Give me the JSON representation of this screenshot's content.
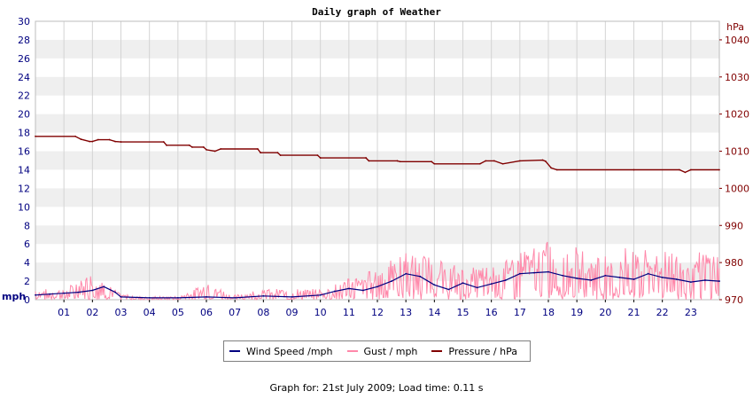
{
  "chart_data": {
    "type": "line",
    "title": "Daily graph of Weather",
    "x_ticks": [
      "01",
      "02",
      "03",
      "04",
      "05",
      "06",
      "07",
      "08",
      "09",
      "10",
      "11",
      "12",
      "13",
      "14",
      "15",
      "16",
      "17",
      "18",
      "19",
      "20",
      "21",
      "22",
      "23"
    ],
    "xlim": [
      0,
      24
    ],
    "y_left": {
      "unit": "mph",
      "ylim": [
        0,
        30
      ],
      "ticks": [
        0,
        2,
        4,
        6,
        8,
        10,
        12,
        14,
        16,
        18,
        20,
        22,
        24,
        26,
        28,
        30
      ]
    },
    "y_right": {
      "unit": "hPa",
      "ylim": [
        970,
        1045
      ],
      "ticks": [
        970,
        980,
        990,
        1000,
        1010,
        1020,
        1030,
        1040
      ]
    },
    "grid": "horizontal bands, vertical lines at hours",
    "series": [
      {
        "name": "Wind Speed /mph",
        "color": "#000080",
        "axis": "left",
        "x": [
          0,
          0.5,
          1,
          1.5,
          2,
          2.4,
          2.8,
          3,
          4,
          5,
          6,
          7,
          8,
          9,
          10,
          10.5,
          11,
          11.5,
          12,
          12.5,
          13,
          13.5,
          14,
          14.5,
          15,
          15.5,
          16,
          16.5,
          17,
          17.5,
          18,
          18.5,
          19,
          19.5,
          20,
          20.5,
          21,
          21.5,
          22,
          22.5,
          23,
          23.5,
          24
        ],
        "values": [
          0.5,
          0.6,
          0.7,
          0.8,
          1.0,
          1.4,
          0.8,
          0.3,
          0.2,
          0.2,
          0.3,
          0.2,
          0.4,
          0.3,
          0.5,
          0.9,
          1.2,
          1.0,
          1.4,
          2.0,
          2.8,
          2.5,
          1.6,
          1.1,
          1.8,
          1.3,
          1.7,
          2.1,
          2.8,
          2.9,
          3.0,
          2.6,
          2.3,
          2.1,
          2.6,
          2.4,
          2.2,
          2.8,
          2.4,
          2.2,
          1.9,
          2.1,
          2.0
        ]
      },
      {
        "name": "Gust / mph",
        "color": "#ff88aa",
        "axis": "left",
        "x": [
          0,
          1,
          2,
          3,
          4,
          5,
          6,
          7,
          8,
          9,
          10,
          11,
          12,
          13,
          14,
          15,
          16,
          17,
          18,
          19,
          20,
          21,
          22,
          23,
          24
        ],
        "values": [
          1.0,
          1.0,
          2.5,
          0.5,
          0.3,
          0.3,
          1.5,
          0.5,
          1.0,
          1.0,
          1.0,
          2.0,
          3.0,
          4.5,
          4.0,
          3.0,
          3.5,
          4.5,
          5.5,
          5.0,
          4.5,
          5.0,
          4.5,
          4.5,
          4.5
        ]
      },
      {
        "name": "Pressure / hPa",
        "color": "#800000",
        "axis": "right",
        "x": [
          0,
          1.4,
          1.6,
          1.9,
          2.0,
          2.2,
          2.6,
          2.8,
          3.0,
          4.5,
          4.6,
          5.4,
          5.5,
          5.9,
          6.0,
          6.3,
          6.5,
          7.8,
          7.9,
          8.5,
          8.6,
          9.9,
          10.0,
          11.6,
          11.7,
          12.7,
          12.8,
          13.9,
          14.0,
          15.6,
          15.8,
          16.1,
          16.4,
          17.0,
          17.8,
          17.9,
          18.1,
          18.3,
          21.0,
          22.6,
          22.8,
          23.0,
          24.0
        ],
        "values": [
          1014.0,
          1014.0,
          1013.2,
          1012.6,
          1012.6,
          1013.1,
          1013.1,
          1012.6,
          1012.5,
          1012.5,
          1011.6,
          1011.6,
          1011.1,
          1011.1,
          1010.4,
          1010.0,
          1010.6,
          1010.6,
          1009.6,
          1009.6,
          1008.9,
          1008.9,
          1008.2,
          1008.2,
          1007.4,
          1007.4,
          1007.2,
          1007.2,
          1006.6,
          1006.6,
          1007.4,
          1007.4,
          1006.6,
          1007.4,
          1007.6,
          1007.3,
          1005.5,
          1005.0,
          1005.0,
          1005.0,
          1004.3,
          1005.0,
          1005.0
        ]
      }
    ]
  },
  "legend": [
    {
      "label": "Wind Speed /mph",
      "color": "#000080"
    },
    {
      "label": "Gust / mph",
      "color": "#ff88aa"
    },
    {
      "label": "Pressure / hPa",
      "color": "#800000"
    }
  ],
  "caption": "Graph for: 21st July 2009; Load time: 0.11 s"
}
